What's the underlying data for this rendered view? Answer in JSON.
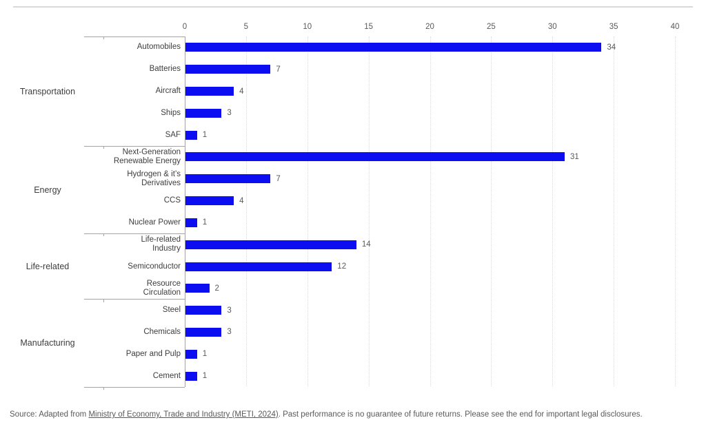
{
  "colors": {
    "bar": "#0d0df2",
    "grid": "#dcdcdc",
    "axis": "#a3a3a3",
    "label_text": "#3d3d3d",
    "value_text": "#595959"
  },
  "chart_data": {
    "type": "bar",
    "orientation": "horizontal",
    "title": "",
    "xlabel": "",
    "ylabel": "",
    "xlim": [
      0,
      40
    ],
    "x_ticks": [
      0,
      5,
      10,
      15,
      20,
      25,
      30,
      35,
      40
    ],
    "grid": "vertical-dotted",
    "legend": "none",
    "bar_color": "#0d0df2",
    "groups": [
      {
        "label": "Transportation",
        "items": [
          {
            "label": "Automobiles",
            "value": 34
          },
          {
            "label": "Batteries",
            "value": 7
          },
          {
            "label": "Aircraft",
            "value": 4
          },
          {
            "label": "Ships",
            "value": 3
          },
          {
            "label": "SAF",
            "value": 1
          }
        ]
      },
      {
        "label": "Energy",
        "items": [
          {
            "label": "Next-Generation\nRenewable Energy",
            "value": 31
          },
          {
            "label": "Hydrogen & it’s\nDerivatives",
            "value": 7
          },
          {
            "label": "CCS",
            "value": 4
          },
          {
            "label": "Nuclear Power",
            "value": 1
          }
        ]
      },
      {
        "label": "Life-related",
        "items": [
          {
            "label": "Life-related\nIndustry",
            "value": 14
          },
          {
            "label": "Semiconductor",
            "value": 12
          },
          {
            "label": "Resource\nCirculation",
            "value": 2
          }
        ]
      },
      {
        "label": "Manufacturing",
        "items": [
          {
            "label": "Steel",
            "value": 3
          },
          {
            "label": "Chemicals",
            "value": 3
          },
          {
            "label": "Paper and Pulp",
            "value": 1
          },
          {
            "label": "Cement",
            "value": 1
          }
        ]
      }
    ]
  },
  "footer": {
    "source_prefix": "Source: Adapted from ",
    "source_link": "Ministry of Economy, Trade and Industry (METI, 2024)",
    "source_suffix": ". Past performance is no guarantee of future returns. Please see the end for important legal disclosures."
  }
}
